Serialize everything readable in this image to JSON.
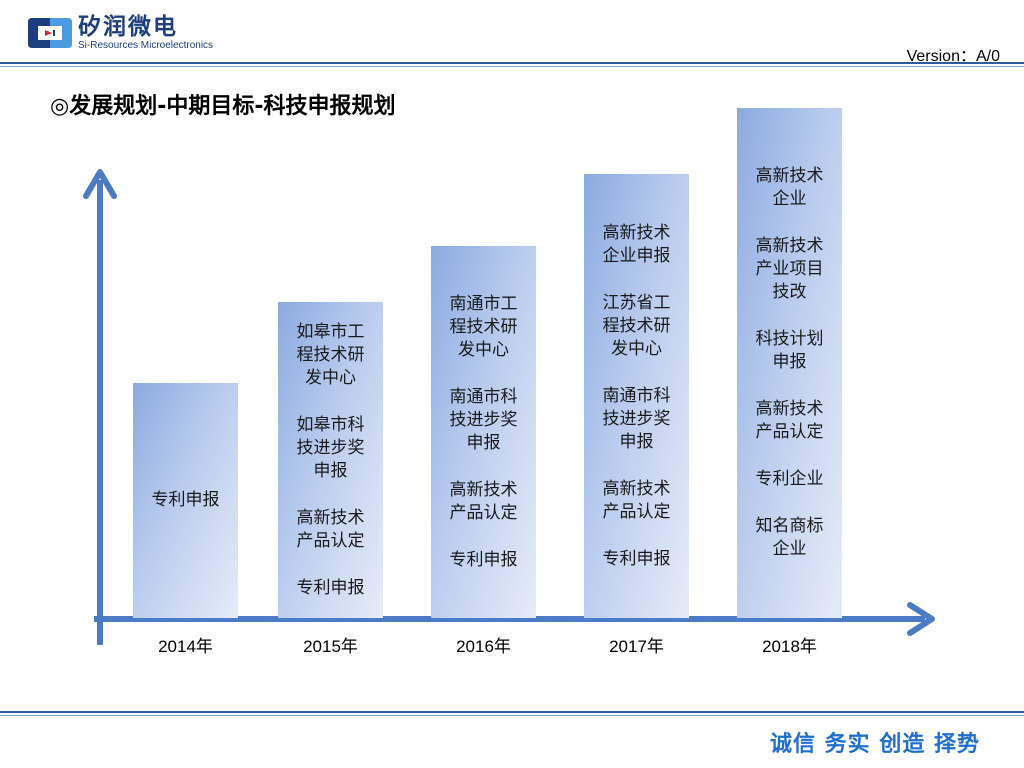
{
  "header": {
    "logo_cn": "矽润微电",
    "logo_en": "Si-Resources Microelectronics",
    "version": "Version：A/0"
  },
  "title": "◎发展规划-中期目标-科技申报规划",
  "colors": {
    "accent": "#2d5aa0",
    "axis": "#4a7bc4",
    "slogan": "#1f6fcf",
    "bar_top": "#8caae0",
    "bar_bottom": "#e6ecf8"
  },
  "diagram": {
    "type": "staircase-bars",
    "columns": [
      {
        "year": "2014年",
        "level": 1,
        "items": [
          "专利申报"
        ]
      },
      {
        "year": "2015年",
        "level": 2,
        "items": [
          "如皋市工程技术研发中心",
          "如皋市科技进步奖申报",
          "高新技术产品认定",
          "专利申报"
        ]
      },
      {
        "year": "2016年",
        "level": 3,
        "items": [
          "南通市工程技术研发中心",
          "南通市科技进步奖申报",
          "高新技术产品认定",
          "专利申报"
        ]
      },
      {
        "year": "2017年",
        "level": 4,
        "items": [
          "高新技术企业申报",
          "江苏省工程技术研发中心",
          "南通市科技进步奖申报",
          "高新技术产品认定",
          "专利申报"
        ]
      },
      {
        "year": "2018年",
        "level": 5,
        "items": [
          "高新技术企业",
          "高新技术产业项目技改",
          "科技计划申报",
          "高新技术产品认定",
          "专利企业",
          "知名商标企业"
        ]
      }
    ]
  },
  "footer": {
    "slogan": "诚信  务实  创造  择势"
  }
}
